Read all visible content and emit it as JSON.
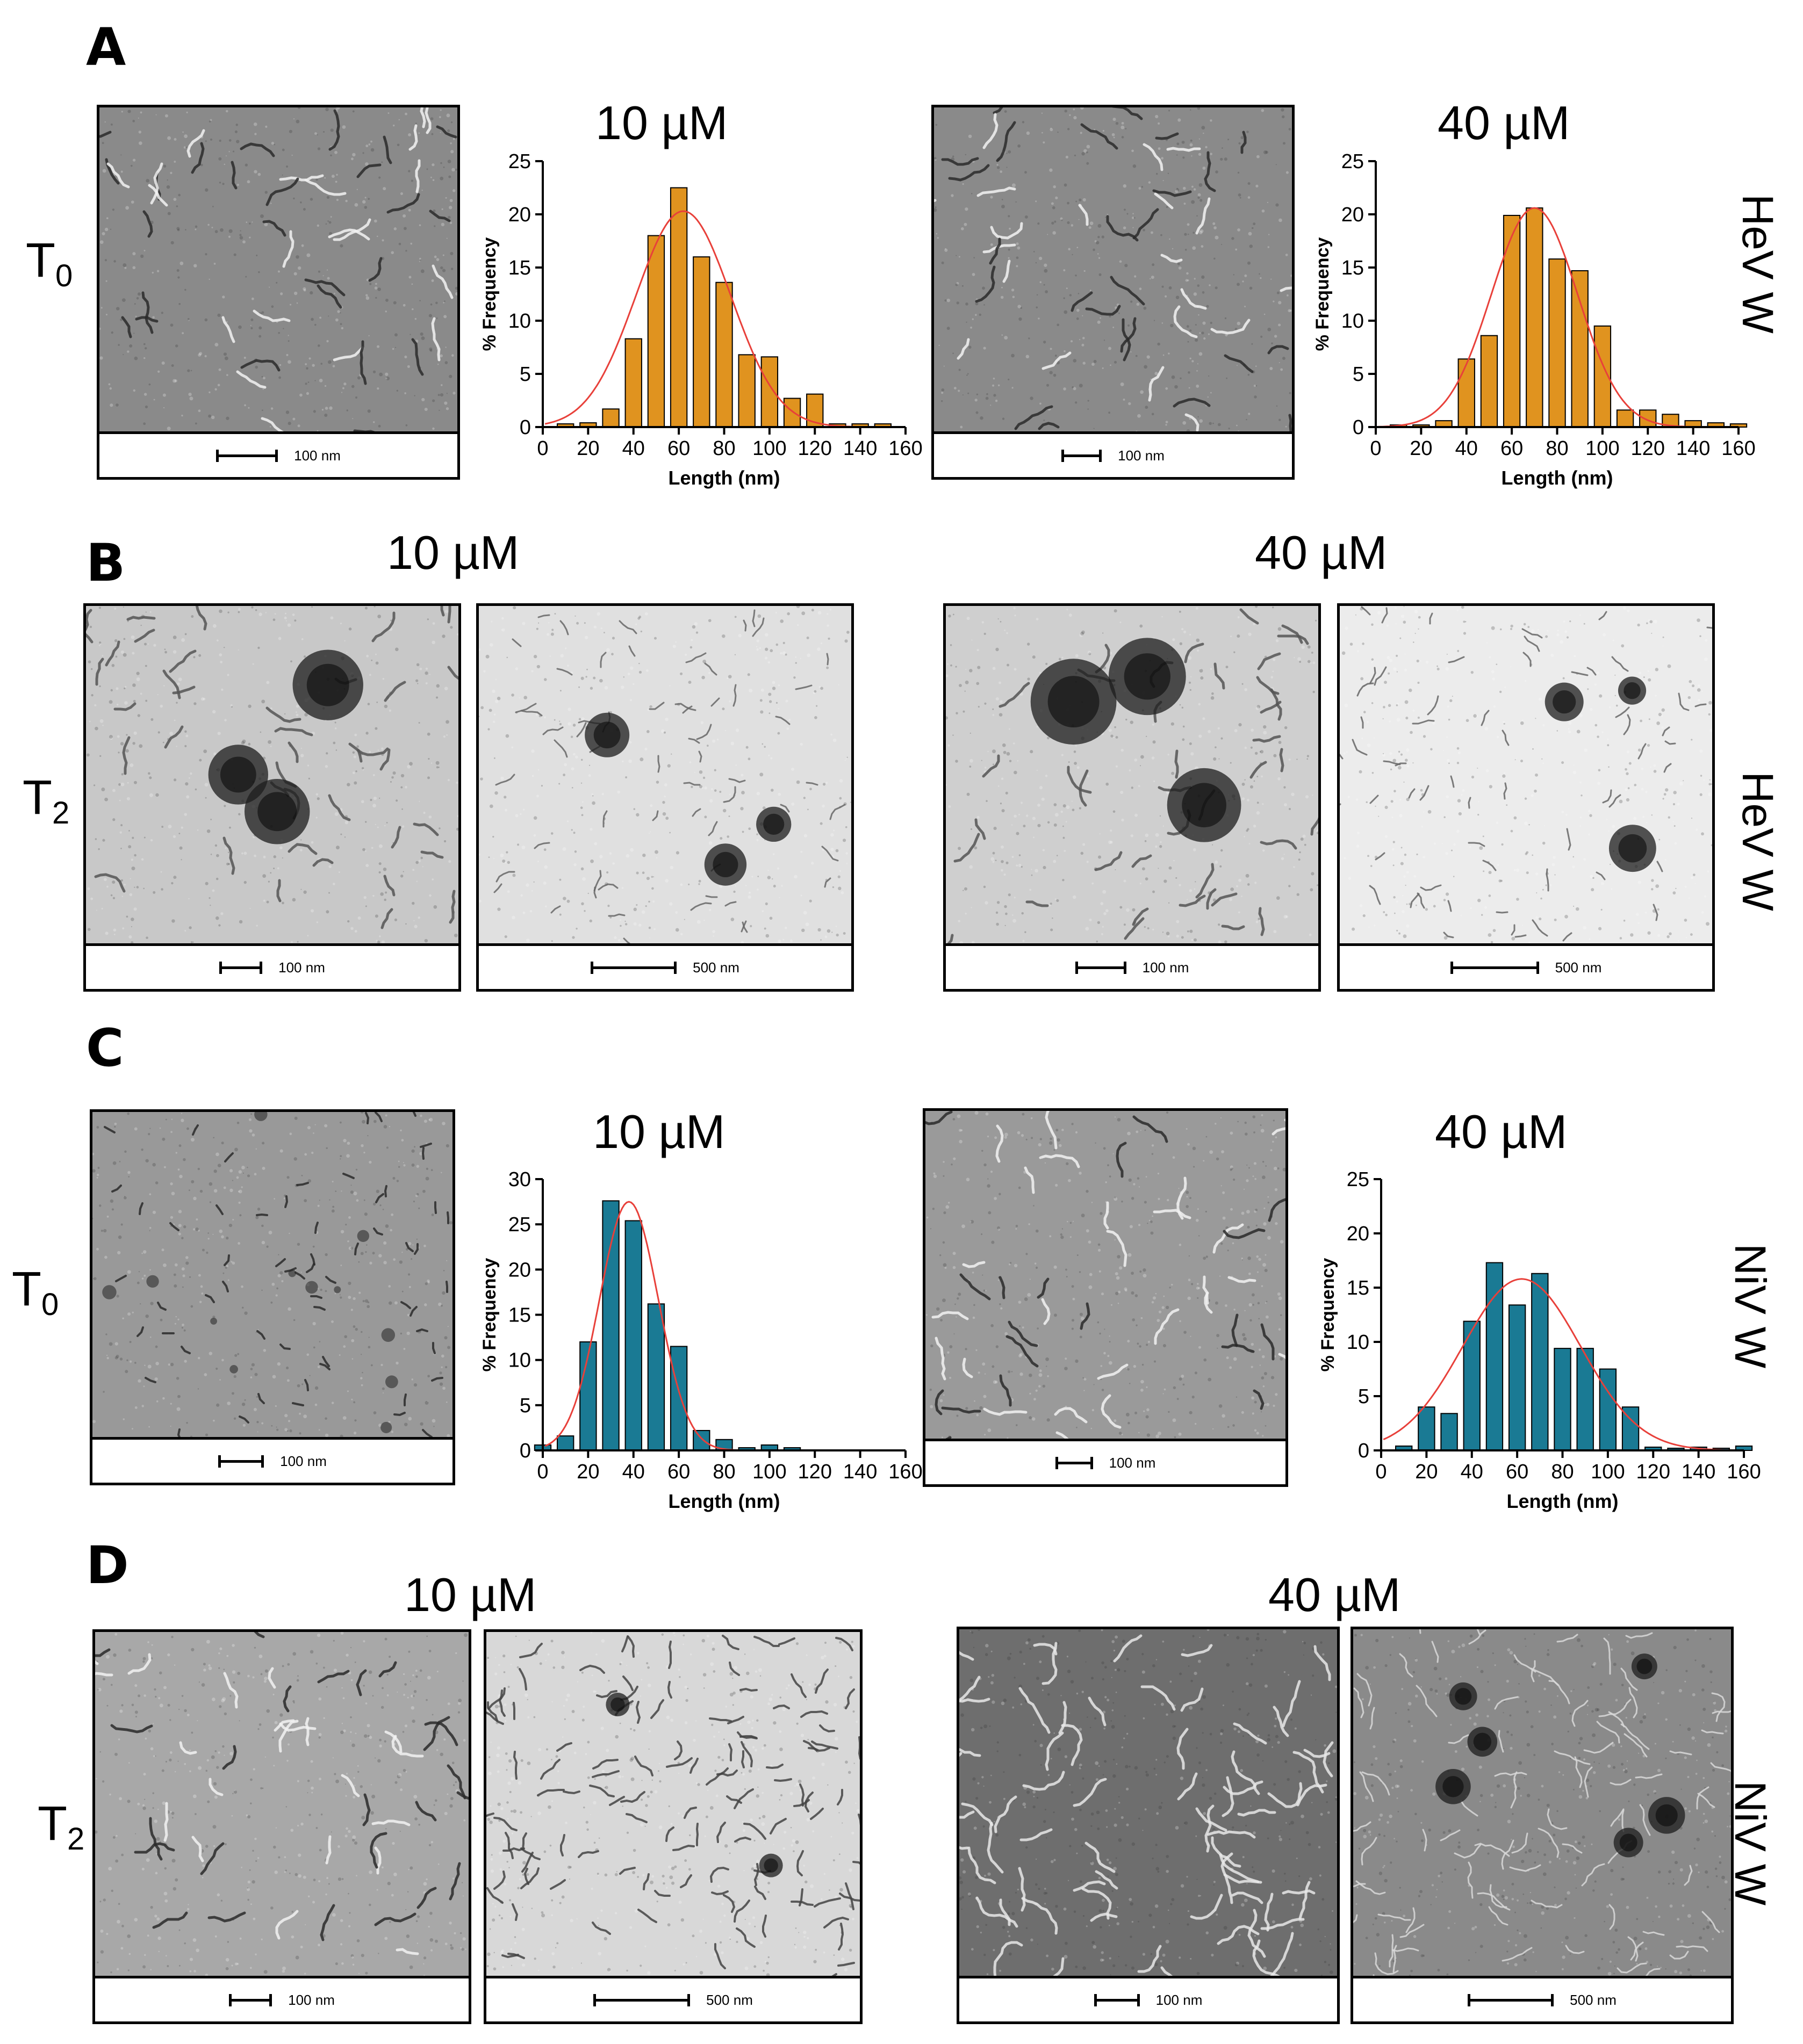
{
  "panels": {
    "A": {
      "letter": "A",
      "time_main": "T",
      "time_sub": "0",
      "side_label": "HeV W",
      "conc_left": "10 µM",
      "conc_right": "40 µM",
      "scale_left": "100 nm",
      "scale_right": "100 nm"
    },
    "B": {
      "letter": "B",
      "time_main": "T",
      "time_sub": "2",
      "side_label": "HeV W",
      "conc_left": "10 µM",
      "conc_right": "40 µM",
      "scale_1": "100 nm",
      "scale_2": "500 nm",
      "scale_3": "100 nm",
      "scale_4": "500 nm"
    },
    "C": {
      "letter": "C",
      "time_main": "T",
      "time_sub": "0",
      "side_label": "NiV W",
      "conc_left": "10 µM",
      "conc_right": "40 µM",
      "scale_left": "100 nm",
      "scale_right": "100 nm"
    },
    "D": {
      "letter": "D",
      "time_main": "T",
      "time_sub": "2",
      "side_label": "NiV W",
      "conc_left": "10 µM",
      "conc_right": "40 µM",
      "scale_1": "100 nm",
      "scale_2": "500 nm",
      "scale_3": "100 nm",
      "scale_4": "500 nm"
    }
  },
  "chart_data": [
    {
      "id": "A-10",
      "type": "bar",
      "title": "10 µM",
      "xlabel": "Length (nm)",
      "ylabel": "% Frequency",
      "xlim": [
        0,
        160
      ],
      "ylim": [
        0,
        25
      ],
      "xticks": [
        0,
        20,
        40,
        60,
        80,
        100,
        120,
        140,
        160
      ],
      "yticks": [
        0,
        5,
        10,
        15,
        20,
        25
      ],
      "bar_color": "#E0931F",
      "fit_color": "#E8403A",
      "x": [
        10,
        20,
        30,
        40,
        50,
        60,
        70,
        80,
        90,
        100,
        110,
        120,
        130,
        140,
        150
      ],
      "values": [
        0.3,
        0.4,
        1.7,
        8.3,
        18,
        22.5,
        16,
        13.6,
        6.8,
        6.6,
        2.7,
        3.1,
        0.3,
        0.3,
        0.3
      ],
      "fit": {
        "amplitude": 20.3,
        "mean": 62,
        "sd": 21
      }
    },
    {
      "id": "A-40",
      "type": "bar",
      "title": "40 µM",
      "xlabel": "Length (nm)",
      "ylabel": "% Frequency",
      "xlim": [
        0,
        160
      ],
      "ylim": [
        0,
        25
      ],
      "xticks": [
        0,
        20,
        40,
        60,
        80,
        100,
        120,
        140,
        160
      ],
      "yticks": [
        0,
        5,
        10,
        15,
        20,
        25
      ],
      "bar_color": "#E0931F",
      "fit_color": "#E8403A",
      "x": [
        10,
        20,
        30,
        40,
        50,
        60,
        70,
        80,
        90,
        100,
        110,
        120,
        130,
        140,
        150,
        160
      ],
      "values": [
        0.2,
        0.2,
        0.6,
        6.4,
        8.6,
        19.9,
        20.6,
        15.8,
        14.7,
        9.5,
        1.6,
        1.6,
        1.2,
        0.6,
        0.4,
        0.3
      ],
      "fit": {
        "amplitude": 20.6,
        "mean": 70,
        "sd": 19
      }
    },
    {
      "id": "C-10",
      "type": "bar",
      "title": "10 µM",
      "xlabel": "Length (nm)",
      "ylabel": "% Frequency",
      "xlim": [
        0,
        160
      ],
      "ylim": [
        0,
        30
      ],
      "xticks": [
        0,
        20,
        40,
        60,
        80,
        100,
        120,
        140,
        160
      ],
      "yticks": [
        0,
        5,
        10,
        15,
        20,
        25,
        30
      ],
      "bar_color": "#1A7A94",
      "fit_color": "#E8403A",
      "x": [
        0,
        10,
        20,
        30,
        40,
        50,
        60,
        70,
        80,
        90,
        100,
        110
      ],
      "values": [
        0.6,
        1.6,
        12,
        27.6,
        25.4,
        16.2,
        11.5,
        2.2,
        1.2,
        0.3,
        0.6,
        0.3
      ],
      "fit": {
        "amplitude": 27.5,
        "mean": 38,
        "sd": 13
      }
    },
    {
      "id": "C-40",
      "type": "bar",
      "title": "40 µM",
      "xlabel": "Length (nm)",
      "ylabel": "% Frequency",
      "xlim": [
        0,
        160
      ],
      "ylim": [
        0,
        25
      ],
      "xticks": [
        0,
        20,
        40,
        60,
        80,
        100,
        120,
        140,
        160
      ],
      "yticks": [
        0,
        5,
        10,
        15,
        20,
        25
      ],
      "bar_color": "#1A7A94",
      "fit_color": "#E8403A",
      "x": [
        10,
        20,
        30,
        40,
        50,
        60,
        70,
        80,
        90,
        100,
        110,
        120,
        130,
        140,
        150,
        160
      ],
      "values": [
        0.4,
        4,
        3.4,
        11.9,
        17.3,
        13.4,
        16.3,
        9.4,
        9.4,
        7.5,
        4,
        0.3,
        0.2,
        0.3,
        0.2,
        0.4
      ],
      "fit": {
        "amplitude": 15.8,
        "mean": 62,
        "sd": 26
      }
    }
  ]
}
